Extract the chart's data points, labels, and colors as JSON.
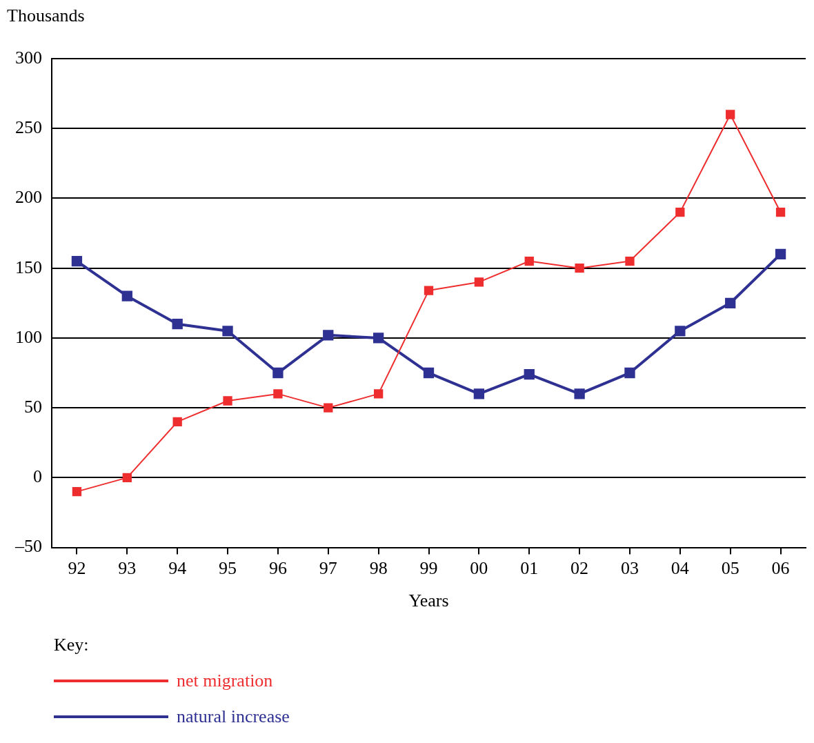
{
  "chart_data": {
    "type": "line",
    "ylabel": "Thousands",
    "xlabel": "Years",
    "legend_title": "Key:",
    "legend": "bottom left",
    "grid": "y",
    "marker": "square",
    "line_style": "solid",
    "categories": [
      "92",
      "93",
      "94",
      "95",
      "96",
      "97",
      "98",
      "99",
      "00",
      "01",
      "02",
      "03",
      "04",
      "05",
      "06"
    ],
    "ylim": [
      -50,
      300
    ],
    "yticks": [
      {
        "value": -50,
        "label": "–50"
      },
      0,
      50,
      100,
      150,
      200,
      250,
      300
    ],
    "series": [
      {
        "name": "net migration",
        "color": "#ee2d2f",
        "values": [
          -10,
          0,
          40,
          55,
          60,
          50,
          60,
          134,
          140,
          155,
          150,
          155,
          190,
          260,
          190
        ]
      },
      {
        "name": "natural increase",
        "color": "#2e3192",
        "values": [
          155,
          130,
          110,
          105,
          75,
          102,
          100,
          75,
          60,
          74,
          60,
          75,
          105,
          125,
          160
        ]
      }
    ]
  }
}
